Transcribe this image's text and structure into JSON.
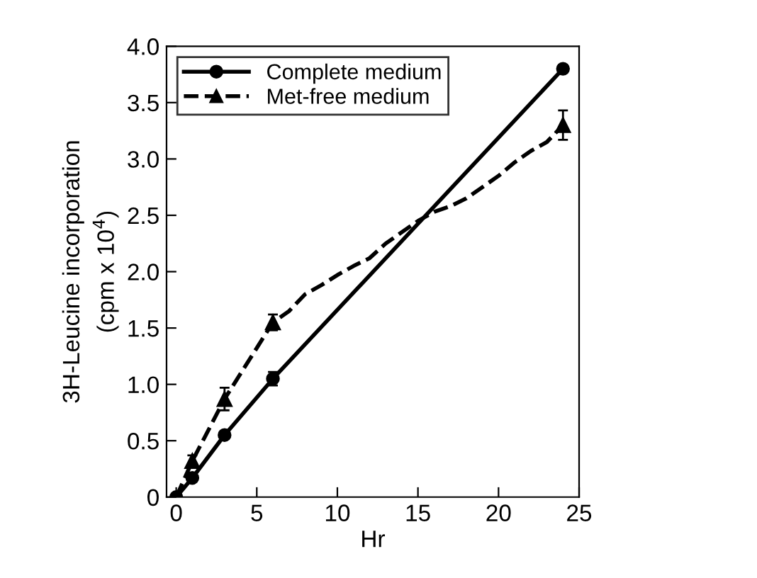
{
  "chart_data": {
    "type": "line",
    "xlabel": "Hr",
    "ylabel": "3H-Leucine incorporation\n(cpm x 10$^{4}$)",
    "xlim": [
      -0.6,
      25
    ],
    "xticks": [
      0,
      5,
      10,
      15,
      20,
      25
    ],
    "ylim": [
      0,
      4.0
    ],
    "yticks": [
      0,
      {
        "value": 0.5,
        "label": "0.5"
      },
      {
        "value": 1,
        "label": "1.0"
      },
      {
        "value": 1.5,
        "label": "1.5"
      },
      {
        "value": 2,
        "label": "2.0"
      },
      {
        "value": 2.5,
        "label": "2.5"
      },
      {
        "value": 3,
        "label": "3.0"
      },
      {
        "value": 3.5,
        "label": "3.5"
      },
      {
        "value": 4,
        "label": "4.0"
      }
    ],
    "legend": "top left",
    "grid": false,
    "series": [
      {
        "name": "Complete medium",
        "type": "line",
        "color": "#000000",
        "marker": "circle",
        "line_style": "solid",
        "x": [
          0,
          1,
          3,
          6,
          24
        ],
        "values": [
          0,
          0.17,
          0.55,
          1.05,
          3.8
        ],
        "errors": [
          null,
          0.03,
          0.03,
          0.06,
          0.03
        ]
      },
      {
        "name": "Met-free medium",
        "type": "scatter",
        "color": "#000000",
        "marker": "triangle",
        "line_style": "dashed",
        "x": [
          1,
          3,
          6,
          24
        ],
        "values": [
          0.32,
          0.87,
          1.55,
          3.3
        ],
        "errors": [
          0.05,
          0.1,
          0.07,
          0.13
        ]
      },
      {
        "color": "#000000",
        "marker": "none",
        "line_style": "dashed",
        "x": [
          0,
          1,
          3,
          6,
          7,
          8,
          9,
          10,
          11,
          12,
          13,
          14,
          15,
          16,
          17,
          18,
          19,
          20,
          21,
          22,
          23,
          24
        ],
        "values": [
          0,
          0.32,
          0.87,
          1.55,
          1.65,
          1.8,
          1.88,
          1.97,
          2.05,
          2.12,
          2.25,
          2.35,
          2.45,
          2.53,
          2.58,
          2.65,
          2.75,
          2.85,
          2.97,
          3.07,
          3.15,
          3.3
        ]
      }
    ]
  }
}
